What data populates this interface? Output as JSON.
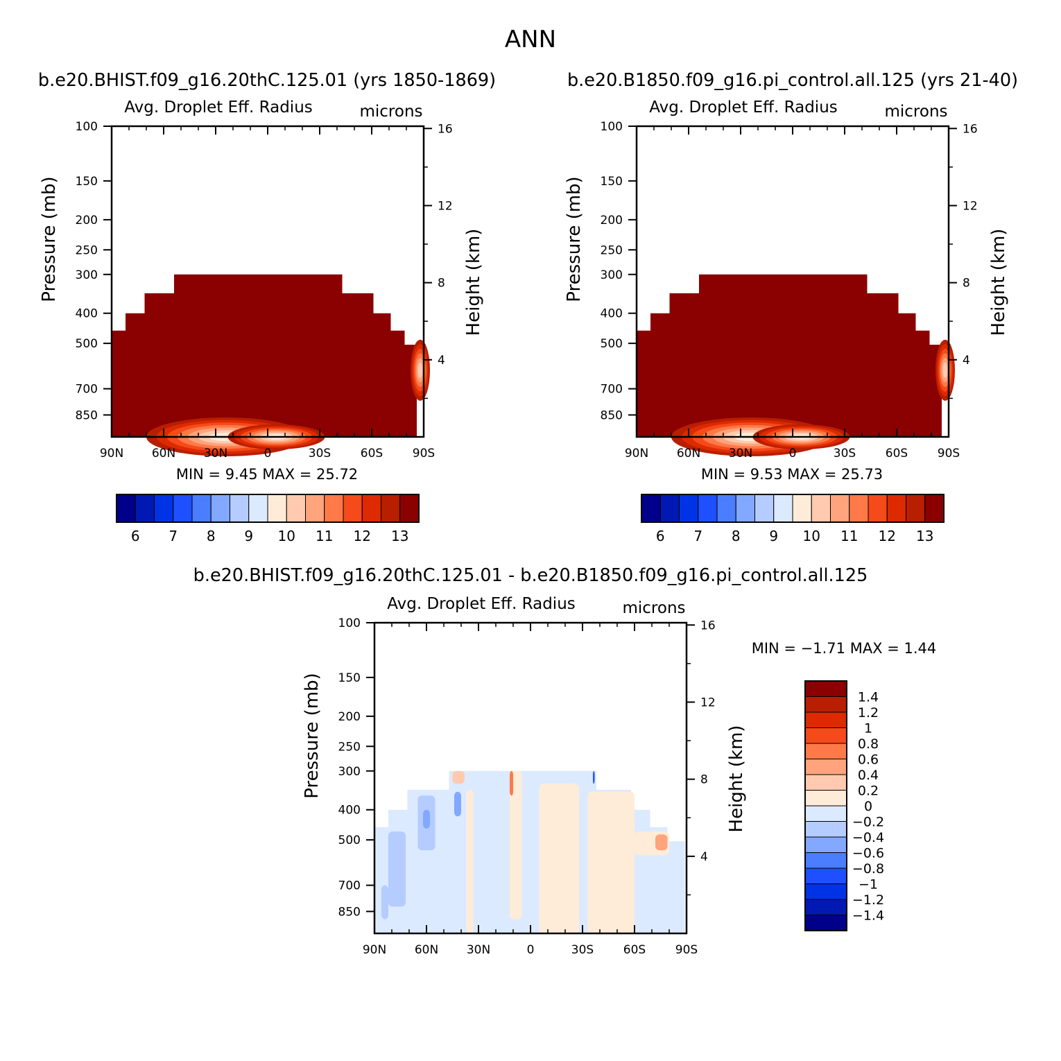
{
  "figure": {
    "title": "ANN",
    "top_left_caption": "b.e20.BHIST.f09_g16.20thC.125.01 (yrs 1850-1869)",
    "top_right_caption": "b.e20.B1850.f09_g16.pi_control.all.125 (yrs 21-40)",
    "bottom_caption": "b.e20.BHIST.f09_g16.20thC.125.01 - b.e20.B1850.f09_g16.pi_control.all.125"
  },
  "chart_data": [
    {
      "id": "panel-bhist",
      "type": "heatmap",
      "title": "Avg. Droplet Eff. Radius",
      "units": "microns",
      "ylabel": "Pressure (mb)",
      "ylabel_right": "Height (km)",
      "x_ticks": [
        "90N",
        "60N",
        "30N",
        "0",
        "30S",
        "60S",
        "90S"
      ],
      "x_range": [
        90,
        -90
      ],
      "y_ticks": [
        100,
        150,
        200,
        250,
        300,
        400,
        500,
        700,
        850
      ],
      "y_range": [
        100,
        1000
      ],
      "y_scale": "log",
      "right_ticks": [
        16,
        12,
        8,
        4
      ],
      "min_label": "MIN =",
      "min_value": "9.45",
      "max_label": "MAX =",
      "max_value": "25.72",
      "colorbar": {
        "colors": [
          "#00008b",
          "#0019b3",
          "#0033e6",
          "#1e50ff",
          "#4b7dff",
          "#82a8ff",
          "#b4ccff",
          "#dceaff",
          "#ffecd8",
          "#ffcab0",
          "#ffa47c",
          "#ff7a48",
          "#f54a1a",
          "#dd2a00",
          "#b81e00",
          "#8b0000"
        ],
        "labels": [
          "6",
          "7",
          "8",
          "9",
          "10",
          "11",
          "12",
          "13"
        ]
      },
      "field_cloud_top_pressure": [
        {
          "lat": 90,
          "p": 455
        },
        {
          "lat": 82,
          "p": 455
        },
        {
          "lat": 82,
          "p": 400
        },
        {
          "lat": 71,
          "p": 400
        },
        {
          "lat": 71,
          "p": 345
        },
        {
          "lat": 54,
          "p": 345
        },
        {
          "lat": 54,
          "p": 300
        },
        {
          "lat": -43,
          "p": 300
        },
        {
          "lat": -43,
          "p": 345
        },
        {
          "lat": -61,
          "p": 345
        },
        {
          "lat": -61,
          "p": 400
        },
        {
          "lat": -71,
          "p": 400
        },
        {
          "lat": -71,
          "p": 455
        },
        {
          "lat": -79,
          "p": 455
        },
        {
          "lat": -79,
          "p": 505
        },
        {
          "lat": -86,
          "p": 505
        },
        {
          "lat": -86,
          "p": 1000
        }
      ],
      "field_fill_color": "#8b0000"
    },
    {
      "id": "panel-b1850",
      "type": "heatmap",
      "title": "Avg. Droplet Eff. Radius",
      "units": "microns",
      "ylabel": "Pressure (mb)",
      "ylabel_right": "Height (km)",
      "x_ticks": [
        "90N",
        "60N",
        "30N",
        "0",
        "30S",
        "60S",
        "90S"
      ],
      "x_range": [
        90,
        -90
      ],
      "y_ticks": [
        100,
        150,
        200,
        250,
        300,
        400,
        500,
        700,
        850
      ],
      "y_range": [
        100,
        1000
      ],
      "y_scale": "log",
      "right_ticks": [
        16,
        12,
        8,
        4
      ],
      "min_label": "MIN =",
      "min_value": "9.53",
      "max_label": "MAX =",
      "max_value": "25.73",
      "colorbar": {
        "colors": [
          "#00008b",
          "#0019b3",
          "#0033e6",
          "#1e50ff",
          "#4b7dff",
          "#82a8ff",
          "#b4ccff",
          "#dceaff",
          "#ffecd8",
          "#ffcab0",
          "#ffa47c",
          "#ff7a48",
          "#f54a1a",
          "#dd2a00",
          "#b81e00",
          "#8b0000"
        ],
        "labels": [
          "6",
          "7",
          "8",
          "9",
          "10",
          "11",
          "12",
          "13"
        ]
      },
      "field_cloud_top_pressure": [
        {
          "lat": 90,
          "p": 455
        },
        {
          "lat": 82,
          "p": 455
        },
        {
          "lat": 82,
          "p": 400
        },
        {
          "lat": 71,
          "p": 400
        },
        {
          "lat": 71,
          "p": 345
        },
        {
          "lat": 54,
          "p": 345
        },
        {
          "lat": 54,
          "p": 300
        },
        {
          "lat": -43,
          "p": 300
        },
        {
          "lat": -43,
          "p": 345
        },
        {
          "lat": -61,
          "p": 345
        },
        {
          "lat": -61,
          "p": 400
        },
        {
          "lat": -71,
          "p": 400
        },
        {
          "lat": -71,
          "p": 455
        },
        {
          "lat": -79,
          "p": 455
        },
        {
          "lat": -79,
          "p": 505
        },
        {
          "lat": -86,
          "p": 505
        },
        {
          "lat": -86,
          "p": 1000
        }
      ],
      "field_fill_color": "#8b0000"
    },
    {
      "id": "panel-diff",
      "type": "heatmap",
      "title": "Avg. Droplet Eff. Radius",
      "units": "microns",
      "ylabel": "Pressure (mb)",
      "ylabel_right": "Height (km)",
      "x_ticks": [
        "90N",
        "60N",
        "30N",
        "0",
        "30S",
        "60S",
        "90S"
      ],
      "x_range": [
        90,
        -90
      ],
      "y_ticks": [
        100,
        150,
        200,
        250,
        300,
        400,
        500,
        700,
        850
      ],
      "y_range": [
        100,
        1000
      ],
      "y_scale": "log",
      "right_ticks": [
        16,
        12,
        8,
        4
      ],
      "min_label": "MIN =",
      "min_value": "-1.71",
      "max_label": "MAX =",
      "max_value": "1.44",
      "colorbar": {
        "colors": [
          "#00008b",
          "#0019b3",
          "#0033e6",
          "#1e50ff",
          "#4b7dff",
          "#82a8ff",
          "#b4ccff",
          "#dceaff",
          "#ffecd8",
          "#ffcab0",
          "#ffa47c",
          "#ff7a48",
          "#f54a1a",
          "#dd2a00",
          "#b81e00",
          "#8b0000"
        ],
        "labels": [
          "1.4",
          "1.2",
          "1",
          "0.8",
          "0.6",
          "0.4",
          "0.2",
          "0",
          "-0.2",
          "-0.4",
          "-0.6",
          "-0.8",
          "-1",
          "-1.2",
          "-1.4"
        ]
      },
      "field_cloud_top_pressure": [
        {
          "lat": 90,
          "p": 455
        },
        {
          "lat": 82,
          "p": 455
        },
        {
          "lat": 82,
          "p": 400
        },
        {
          "lat": 71,
          "p": 400
        },
        {
          "lat": 71,
          "p": 345
        },
        {
          "lat": 47,
          "p": 345
        },
        {
          "lat": 47,
          "p": 300
        },
        {
          "lat": -38,
          "p": 300
        },
        {
          "lat": -38,
          "p": 345
        },
        {
          "lat": -58,
          "p": 345
        },
        {
          "lat": -58,
          "p": 400
        },
        {
          "lat": -69,
          "p": 400
        },
        {
          "lat": -69,
          "p": 455
        },
        {
          "lat": -79,
          "p": 455
        },
        {
          "lat": -79,
          "p": 505
        },
        {
          "lat": -89,
          "p": 505
        },
        {
          "lat": -89,
          "p": 1000
        }
      ],
      "field_fill_color": "#dceaff"
    }
  ]
}
